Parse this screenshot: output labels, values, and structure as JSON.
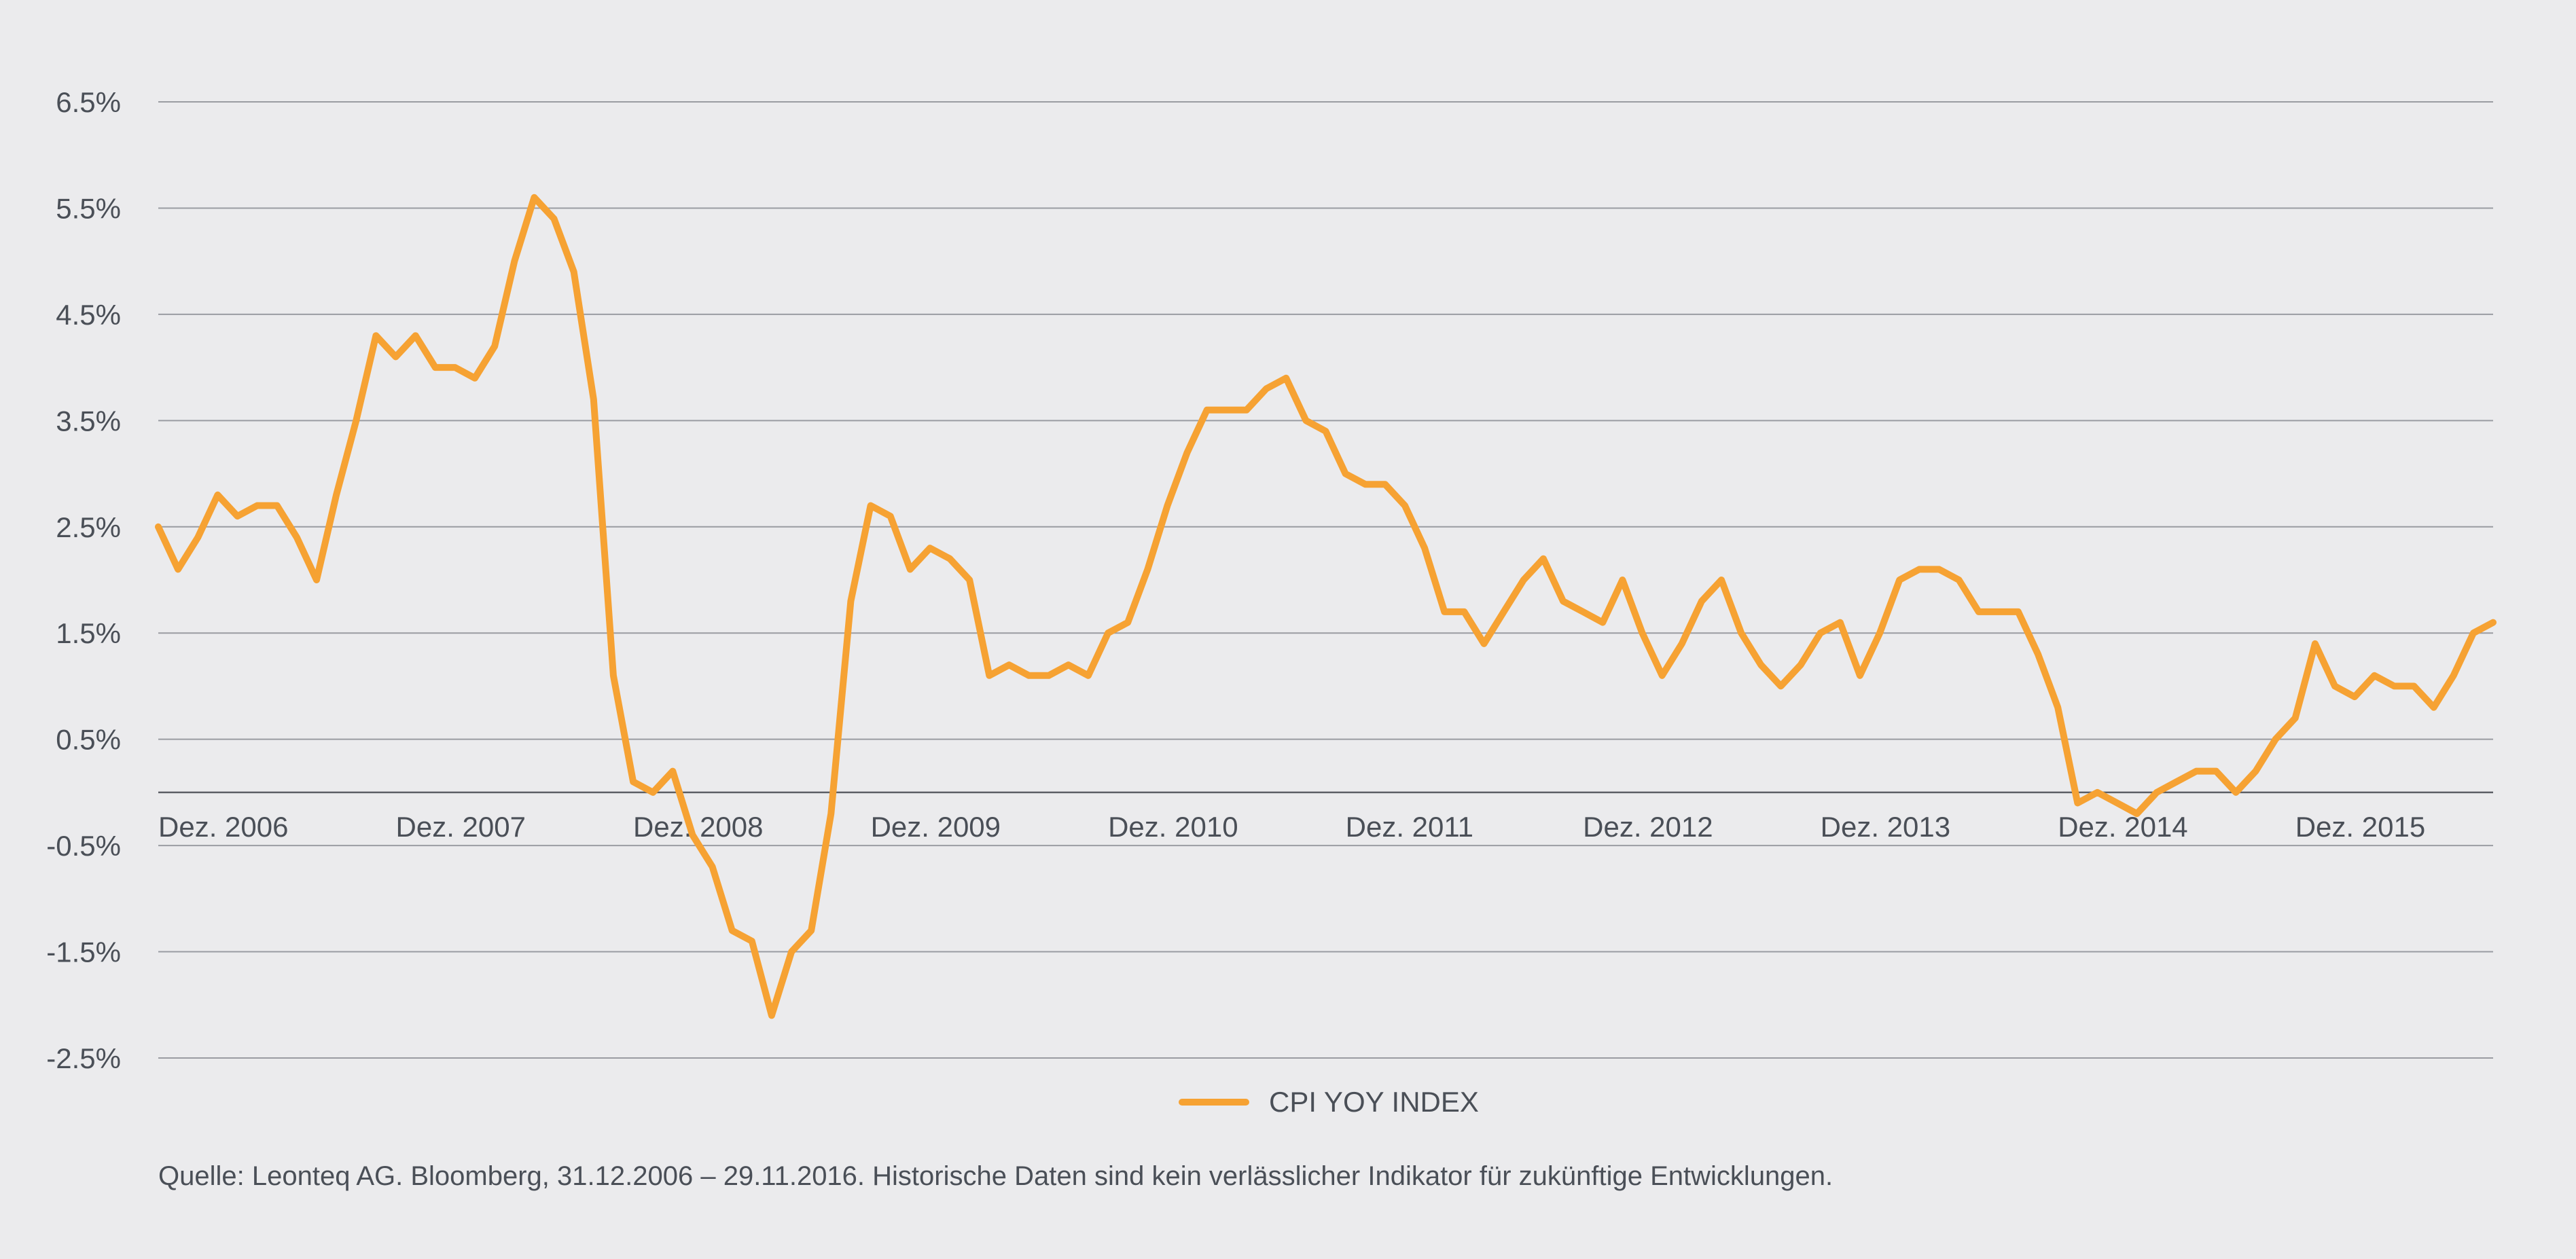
{
  "chart_data": {
    "type": "line",
    "title": "",
    "xlabel": "",
    "ylabel": "",
    "ylim": [
      -2.5,
      6.5
    ],
    "yticks": [
      6.5,
      5.5,
      4.5,
      3.5,
      2.5,
      1.5,
      0.5,
      -0.5,
      -1.5,
      -2.5
    ],
    "ytick_labels": [
      "6.5%",
      "5.5%",
      "4.5%",
      "3.5%",
      "2.5%",
      "1.5%",
      "0.5%",
      "-0.5%",
      "-1.5%",
      "-2.5%"
    ],
    "xticks": [
      {
        "index": 0,
        "label": "Dez. 2006"
      },
      {
        "index": 12,
        "label": "Dez. 2007"
      },
      {
        "index": 24,
        "label": "Dez. 2008"
      },
      {
        "index": 36,
        "label": "Dez. 2009"
      },
      {
        "index": 48,
        "label": "Dez. 2010"
      },
      {
        "index": 60,
        "label": "Dez. 2011"
      },
      {
        "index": 72,
        "label": "Dez. 2012"
      },
      {
        "index": 84,
        "label": "Dez. 2013"
      },
      {
        "index": 96,
        "label": "Dez. 2014"
      },
      {
        "index": 108,
        "label": "Dez. 2015"
      }
    ],
    "grid": true,
    "legend_position": "bottom-center",
    "series": [
      {
        "name": "CPI YOY INDEX",
        "color": "#f6a233",
        "values": [
          2.5,
          2.1,
          2.4,
          2.8,
          2.6,
          2.7,
          2.7,
          2.4,
          2.0,
          2.8,
          3.5,
          4.3,
          4.1,
          4.3,
          4.0,
          4.0,
          3.9,
          4.2,
          5.0,
          5.6,
          5.4,
          4.9,
          3.7,
          1.1,
          0.1,
          0.0,
          0.2,
          -0.4,
          -0.7,
          -1.3,
          -1.4,
          -2.1,
          -1.5,
          -1.3,
          -0.2,
          1.8,
          2.7,
          2.6,
          2.1,
          2.3,
          2.2,
          2.0,
          1.1,
          1.2,
          1.1,
          1.1,
          1.2,
          1.1,
          1.5,
          1.6,
          2.1,
          2.7,
          3.2,
          3.6,
          3.6,
          3.6,
          3.8,
          3.9,
          3.5,
          3.4,
          3.0,
          2.9,
          2.9,
          2.7,
          2.3,
          1.7,
          1.7,
          1.4,
          1.7,
          2.0,
          2.2,
          1.8,
          1.7,
          1.6,
          2.0,
          1.5,
          1.1,
          1.4,
          1.8,
          2.0,
          1.5,
          1.2,
          1.0,
          1.2,
          1.5,
          1.6,
          1.1,
          1.5,
          2.0,
          2.1,
          2.1,
          2.0,
          1.7,
          1.7,
          1.7,
          1.3,
          0.8,
          -0.1,
          0.0,
          -0.1,
          -0.2,
          0.0,
          0.1,
          0.2,
          0.2,
          0.0,
          0.2,
          0.5,
          0.7,
          1.4,
          1.0,
          0.9,
          1.1,
          1.0,
          1.0,
          0.8,
          1.1,
          1.5,
          1.6
        ]
      }
    ]
  },
  "source_text": "Quelle: Leonteq AG. Bloomberg, 31.12.2006 – 29.11.2016. Historische Daten sind kein verlässlicher Indikator für zukünftige Entwicklungen."
}
